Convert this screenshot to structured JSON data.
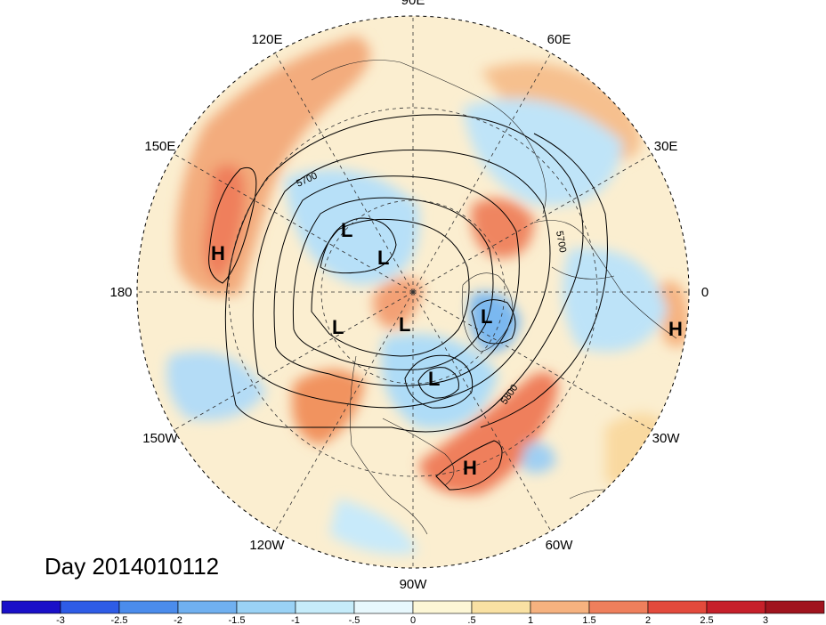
{
  "caption": "Day 2014010112",
  "lon_labels": [
    {
      "text": "90E",
      "lon": 90
    },
    {
      "text": "60E",
      "lon": 60
    },
    {
      "text": "30E",
      "lon": 30
    },
    {
      "text": "0",
      "lon": 0
    },
    {
      "text": "30W",
      "lon": -30
    },
    {
      "text": "60W",
      "lon": -60
    },
    {
      "text": "90W",
      "lon": -90
    },
    {
      "text": "120W",
      "lon": -120
    },
    {
      "text": "150W",
      "lon": -150
    },
    {
      "text": "180",
      "lon": 180
    },
    {
      "text": "150E",
      "lon": 150
    },
    {
      "text": "120E",
      "lon": 120
    }
  ],
  "pressure_centers": [
    {
      "label": "H",
      "type": "high"
    },
    {
      "label": "L",
      "type": "low"
    },
    {
      "label": "L",
      "type": "low"
    },
    {
      "label": "L",
      "type": "low"
    },
    {
      "label": "L",
      "type": "low"
    },
    {
      "label": "L",
      "type": "low"
    },
    {
      "label": "L",
      "type": "low"
    },
    {
      "label": "H",
      "type": "high"
    },
    {
      "label": "H",
      "type": "high"
    }
  ],
  "contour_labels": [
    "5700",
    "5700",
    "5800"
  ],
  "colorbar": {
    "ticks": [
      "-3",
      "-2.5",
      "-2",
      "-1.5",
      "-1",
      "-.5",
      "0",
      ".5",
      "1",
      "1.5",
      "2",
      "2.5",
      "3"
    ],
    "colors": [
      "#1a10c8",
      "#2e5ce6",
      "#4b8cec",
      "#70b0f0",
      "#9ad2f5",
      "#c6ecfa",
      "#e8f8fd",
      "#fdf7d6",
      "#f9e1a3",
      "#f6b27f",
      "#ef7f5c",
      "#e34a3c",
      "#c6202a",
      "#a0141e"
    ]
  }
}
